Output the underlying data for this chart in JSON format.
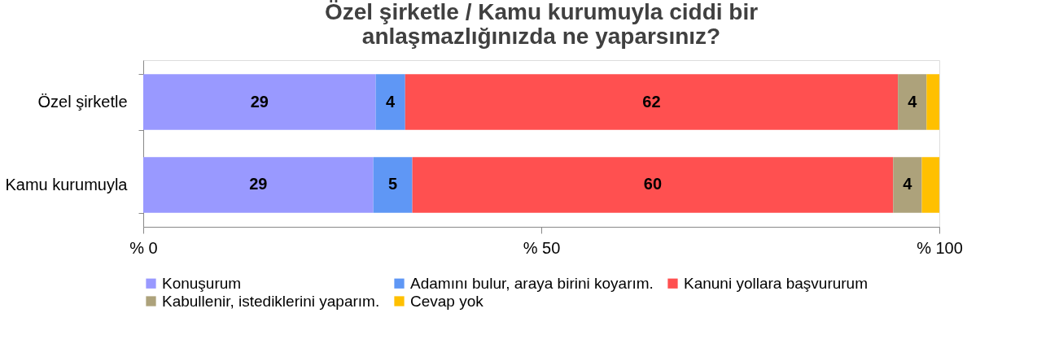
{
  "chart_data": {
    "type": "bar",
    "title": "Özel şirketle / Kamu kurumuyla ciddi bir anlaşmazlığınızda ne yaparsınız?",
    "orientation": "horizontal",
    "stacked": true,
    "categories": [
      "Özel şirketle",
      "Kamu kurumuyla"
    ],
    "series": [
      {
        "name": "Konuşurum",
        "color": "#9999ff",
        "values": [
          29.2,
          28.9
        ],
        "value_labels": [
          "29",
          "29"
        ]
      },
      {
        "name": "Adamını bulur, araya birini koyarım.",
        "color": "#5f97f5",
        "values": [
          3.7,
          4.9
        ],
        "value_labels": [
          "4",
          "5"
        ]
      },
      {
        "name": "Kanuni yollara başvururum",
        "color": "#ff5050",
        "values": [
          61.9,
          60.4
        ],
        "value_labels": [
          "62",
          "60"
        ]
      },
      {
        "name": "Kabullenir, istediklerini yaparım.",
        "color": "#ada27b",
        "values": [
          3.6,
          3.6
        ],
        "value_labels": [
          "4",
          "4"
        ]
      },
      {
        "name": "Cevap yok",
        "color": "#ffc000",
        "values": [
          1.6,
          2.2
        ],
        "value_labels": [
          null,
          null
        ]
      }
    ],
    "xlim": [
      0,
      100
    ],
    "xticks": [
      {
        "value": 0,
        "label": "% 0"
      },
      {
        "value": 50,
        "label": "% 50"
      },
      {
        "value": 100,
        "label": "% 100"
      }
    ],
    "grid": false,
    "legend": "bottom"
  }
}
